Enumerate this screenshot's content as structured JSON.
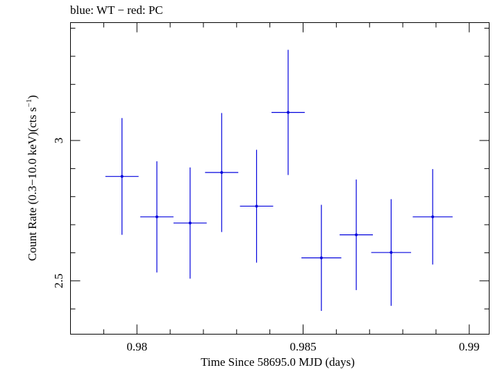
{
  "chart_data": {
    "type": "scatter",
    "title": "blue: WT − red: PC",
    "xlabel": "Time Since 58695.0 MJD (days)",
    "ylabel_main": "Count Rate (0.3−10.0 keV)(cts s",
    "ylabel_sup": "−1",
    "ylabel_end": ")",
    "xlim": [
      0.978,
      0.9906
    ],
    "ylim": [
      2.31,
      3.42
    ],
    "x_ticks": [
      {
        "value": 0.98,
        "label": "0.98"
      },
      {
        "value": 0.985,
        "label": "0.985"
      },
      {
        "value": 0.99,
        "label": "0.99"
      }
    ],
    "x_minor_step": 0.001,
    "y_ticks": [
      {
        "value": 2.5,
        "label": "2.5"
      },
      {
        "value": 3.0,
        "label": "3"
      }
    ],
    "y_minor_step": 0.1,
    "series": [
      {
        "color": "#0000dd",
        "points": [
          {
            "x": 0.97955,
            "xerr": 0.0005,
            "y": 2.872,
            "yerr": 0.208
          },
          {
            "x": 0.9806,
            "xerr": 0.0005,
            "y": 2.728,
            "yerr": 0.198
          },
          {
            "x": 0.9816,
            "xerr": 0.0005,
            "y": 2.706,
            "yerr": 0.198
          },
          {
            "x": 0.98255,
            "xerr": 0.0005,
            "y": 2.886,
            "yerr": 0.212
          },
          {
            "x": 0.9836,
            "xerr": 0.0005,
            "y": 2.766,
            "yerr": 0.201
          },
          {
            "x": 0.98455,
            "xerr": 0.0005,
            "y": 3.1,
            "yerr": 0.223
          },
          {
            "x": 0.98555,
            "xerr": 0.0006,
            "y": 2.582,
            "yerr": 0.189
          },
          {
            "x": 0.9866,
            "xerr": 0.0005,
            "y": 2.664,
            "yerr": 0.197
          },
          {
            "x": 0.98765,
            "xerr": 0.0006,
            "y": 2.601,
            "yerr": 0.19
          },
          {
            "x": 0.9889,
            "xerr": 0.0006,
            "y": 2.728,
            "yerr": 0.17
          }
        ]
      }
    ]
  }
}
